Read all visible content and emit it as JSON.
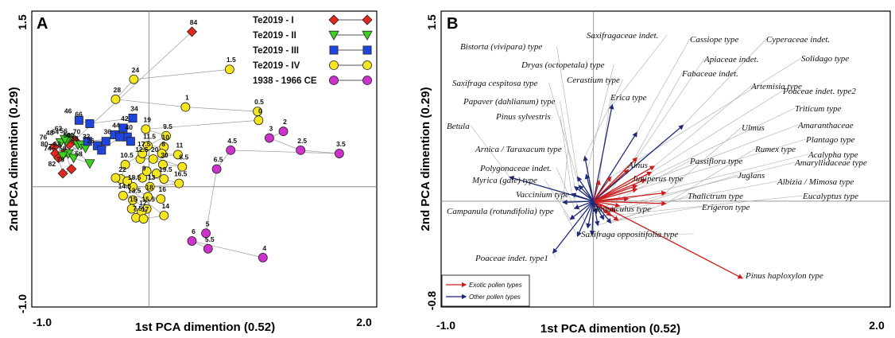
{
  "chart_data": [
    {
      "type": "scatter",
      "panel_label": "A",
      "xlabel": "1st PCA dimention (0.52)",
      "ylabel": "2nd PCA dimention (0.29)",
      "xlim": [
        -1.0,
        2.0
      ],
      "ylim": [
        -1.0,
        1.5
      ],
      "x_ticks": [
        "-1.0",
        "2.0"
      ],
      "y_ticks": [
        "-1.0",
        "1.5"
      ],
      "zero_lines": true,
      "legend_position": "top-right",
      "series": [
        {
          "name": "Te2019 - I",
          "marker": "diamond",
          "color": "#e0281e",
          "points": [
            {
              "label": "84",
              "x": 0.4,
              "y": 1.4
            },
            {
              "label": "56",
              "x": -0.69,
              "y": 0.42
            },
            {
              "label": "76",
              "x": -0.88,
              "y": 0.36
            },
            {
              "label": "80",
              "x": -0.87,
              "y": 0.3
            },
            {
              "label": "74",
              "x": -0.84,
              "y": 0.26
            },
            {
              "label": "82",
              "x": -0.8,
              "y": 0.12
            },
            {
              "label": "78",
              "x": -0.72,
              "y": 0.16
            },
            {
              "label": "",
              "x": -0.78,
              "y": 0.31
            },
            {
              "label": "",
              "x": -0.74,
              "y": 0.38
            }
          ]
        },
        {
          "name": "Te2019 - II",
          "marker": "triangle-down",
          "color": "#3cd21e",
          "points": [
            {
              "label": "62",
              "x": -0.74,
              "y": 0.44
            },
            {
              "label": "48",
              "x": -0.82,
              "y": 0.4
            },
            {
              "label": "64",
              "x": -0.77,
              "y": 0.41
            },
            {
              "label": "54",
              "x": -0.66,
              "y": 0.38
            },
            {
              "label": "68",
              "x": -0.75,
              "y": 0.3
            },
            {
              "label": "60",
              "x": -0.63,
              "y": 0.38
            },
            {
              "label": "38",
              "x": -0.59,
              "y": 0.35
            },
            {
              "label": "72",
              "x": -0.8,
              "y": 0.28
            },
            {
              "label": "50",
              "x": -0.7,
              "y": 0.26
            },
            {
              "label": "58",
              "x": -0.55,
              "y": 0.21
            },
            {
              "label": "",
              "x": -0.78,
              "y": 0.43
            }
          ]
        },
        {
          "name": "Te2019 - III",
          "marker": "square",
          "color": "#1e46dc",
          "points": [
            {
              "label": "46",
              "x": -0.65,
              "y": 0.6
            },
            {
              "label": "66",
              "x": -0.55,
              "y": 0.57
            },
            {
              "label": "34",
              "x": -0.15,
              "y": 0.62
            },
            {
              "label": "42",
              "x": -0.24,
              "y": 0.53
            },
            {
              "label": "44",
              "x": -0.32,
              "y": 0.47
            },
            {
              "label": "40",
              "x": -0.2,
              "y": 0.45
            },
            {
              "label": "70",
              "x": -0.57,
              "y": 0.41
            },
            {
              "label": "36",
              "x": -0.4,
              "y": 0.41
            },
            {
              "label": "32",
              "x": -0.48,
              "y": 0.37
            },
            {
              "label": "26",
              "x": -0.44,
              "y": 0.33
            },
            {
              "label": "",
              "x": -0.27,
              "y": 0.45
            },
            {
              "label": "",
              "x": -0.17,
              "y": 0.41
            }
          ]
        },
        {
          "name": "Te2019 - IV",
          "marker": "circle",
          "color": "#f5e61e",
          "points": [
            {
              "label": "1.5",
              "x": 0.75,
              "y": 1.06
            },
            {
              "label": "24",
              "x": -0.14,
              "y": 0.97
            },
            {
              "label": "28",
              "x": -0.31,
              "y": 0.79
            },
            {
              "label": "1",
              "x": 0.34,
              "y": 0.72
            },
            {
              "label": "0.5",
              "x": 1.01,
              "y": 0.68
            },
            {
              "label": "0",
              "x": 1.02,
              "y": 0.6
            },
            {
              "label": "19",
              "x": -0.03,
              "y": 0.52
            },
            {
              "label": "9.5",
              "x": 0.16,
              "y": 0.46
            },
            {
              "label": "11.5",
              "x": -0.01,
              "y": 0.37
            },
            {
              "label": "10",
              "x": 0.14,
              "y": 0.36
            },
            {
              "label": "8",
              "x": 0.12,
              "y": 0.3
            },
            {
              "label": "11",
              "x": 0.27,
              "y": 0.29
            },
            {
              "label": "12.5",
              "x": -0.08,
              "y": 0.25
            },
            {
              "label": "20",
              "x": 0.04,
              "y": 0.25
            },
            {
              "label": "30",
              "x": 0.13,
              "y": 0.2
            },
            {
              "label": "8.5",
              "x": 0.31,
              "y": 0.18
            },
            {
              "label": "17.5",
              "x": -0.06,
              "y": 0.3
            },
            {
              "label": "10.5",
              "x": -0.22,
              "y": 0.2
            },
            {
              "label": "22",
              "x": -0.26,
              "y": 0.07
            },
            {
              "label": "9",
              "x": -0.06,
              "y": 0.08
            },
            {
              "label": "19.5",
              "x": 0.14,
              "y": 0.07
            },
            {
              "label": "16.5",
              "x": 0.28,
              "y": 0.03
            },
            {
              "label": "13",
              "x": 0.01,
              "y": 0.0
            },
            {
              "label": "18.5",
              "x": -0.15,
              "y": 0.0
            },
            {
              "label": "18",
              "x": -0.01,
              "y": -0.09
            },
            {
              "label": "16",
              "x": 0.11,
              "y": -0.11
            },
            {
              "label": "14.5",
              "x": -0.24,
              "y": -0.08
            },
            {
              "label": "13.5",
              "x": -0.15,
              "y": -0.12
            },
            {
              "label": "15.5",
              "x": -0.02,
              "y": -0.2
            },
            {
              "label": "15",
              "x": -0.16,
              "y": -0.2
            },
            {
              "label": "12",
              "x": -0.07,
              "y": -0.23
            },
            {
              "label": "7.5",
              "x": -0.12,
              "y": -0.28
            },
            {
              "label": "17",
              "x": -0.05,
              "y": -0.29
            },
            {
              "label": "14",
              "x": 0.14,
              "y": -0.26
            },
            {
              "label": "",
              "x": -0.31,
              "y": 0.08
            },
            {
              "label": "",
              "x": -0.2,
              "y": 0.05
            },
            {
              "label": "",
              "x": -0.02,
              "y": 0.14
            },
            {
              "label": "",
              "x": 0.07,
              "y": 0.12
            }
          ]
        },
        {
          "name": "1938 - 1966 CE",
          "marker": "circle",
          "color": "#cd32cd",
          "points": [
            {
              "label": "2",
              "x": 1.25,
              "y": 0.5
            },
            {
              "label": "3",
              "x": 1.12,
              "y": 0.44
            },
            {
              "label": "2.5",
              "x": 1.41,
              "y": 0.33
            },
            {
              "label": "3.5",
              "x": 1.77,
              "y": 0.3
            },
            {
              "label": "4.5",
              "x": 0.76,
              "y": 0.33
            },
            {
              "label": "6.5",
              "x": 0.63,
              "y": 0.16
            },
            {
              "label": "5",
              "x": 0.53,
              "y": -0.42
            },
            {
              "label": "5.5",
              "x": 0.55,
              "y": -0.56
            },
            {
              "label": "6",
              "x": 0.4,
              "y": -0.49
            },
            {
              "label": "4",
              "x": 1.06,
              "y": -0.64
            }
          ]
        }
      ]
    },
    {
      "type": "biplot",
      "panel_label": "B",
      "xlabel": "1st PCA dimention (0.52)",
      "ylabel": "2nd PCA dimention (0.29)",
      "xlim": [
        -1.0,
        2.0
      ],
      "ylim": [
        -0.8,
        1.5
      ],
      "x_ticks": [
        "-1.0",
        "2.0"
      ],
      "y_ticks": [
        "-0.8",
        "1.5"
      ],
      "legend_position": "bottom-left",
      "legend": [
        {
          "name": "Exotic pollen types",
          "color": "#d21e1e"
        },
        {
          "name": "Other pollen types",
          "color": "#1e1e82"
        }
      ],
      "vectors": [
        {
          "name": "Pinus haploxylon type",
          "group": "exotic",
          "x": 1.03,
          "y": -0.64
        },
        {
          "name": "Rumex type",
          "group": "exotic",
          "x": 0.5,
          "y": -0.02
        },
        {
          "name": "Ulmus",
          "group": "exotic",
          "x": 0.5,
          "y": 0.07
        },
        {
          "name": "Artemisia type",
          "group": "exotic",
          "x": 0.42,
          "y": 0.29
        },
        {
          "name": "Poaceae indet. type2",
          "group": "exotic",
          "x": 0.4,
          "y": 0.24
        },
        {
          "name": "Triticum type",
          "group": "exotic",
          "x": 0.36,
          "y": 0.18
        },
        {
          "name": "Amaranthaceae",
          "group": "exotic",
          "x": 0.3,
          "y": 0.13
        },
        {
          "name": "Plantago type",
          "group": "exotic",
          "x": 0.3,
          "y": 0.1
        },
        {
          "name": "Acalypha type",
          "group": "exotic",
          "x": 0.24,
          "y": 0.02
        },
        {
          "name": "Amaryllidaceae type",
          "group": "exotic",
          "x": 0.18,
          "y": -0.04
        },
        {
          "name": "Albizia / Mimosa type",
          "group": "exotic",
          "x": 0.15,
          "y": -0.08
        },
        {
          "name": "Eucalyptus type",
          "group": "exotic",
          "x": 0.12,
          "y": -0.12
        },
        {
          "name": "Juglans",
          "group": "exotic",
          "x": 0.1,
          "y": -0.1
        },
        {
          "name": "Passiflora type",
          "group": "exotic",
          "x": 0.06,
          "y": -0.06
        },
        {
          "name": "Thalictrum type",
          "group": "other",
          "x": 0.12,
          "y": -0.18
        },
        {
          "name": "Erigeron type",
          "group": "exotic",
          "x": 0.17,
          "y": -0.16
        },
        {
          "name": "Fabaceae indet.",
          "group": "exotic",
          "x": 0.24,
          "y": 0.26
        },
        {
          "name": "Apiaceae indet.",
          "group": "exotic",
          "x": 0.3,
          "y": 0.36
        },
        {
          "name": "Cyperaceae indet.",
          "group": "other",
          "x": 0.62,
          "y": 0.63
        },
        {
          "name": "Cassiope type",
          "group": "other",
          "x": 0.3,
          "y": 0.57
        },
        {
          "name": "Solidago type",
          "group": "exotic",
          "x": 0.12,
          "y": 0.2
        },
        {
          "name": "Saxifragaceae indet.",
          "group": "other",
          "x": 0.13,
          "y": 0.8
        },
        {
          "name": "Erica type",
          "group": "exotic",
          "x": 0.04,
          "y": 0.17
        },
        {
          "name": "Cerastium type",
          "group": "other",
          "x": -0.06,
          "y": 0.37
        },
        {
          "name": "Dryas (octopetala) type",
          "group": "other",
          "x": -0.05,
          "y": 0.22
        },
        {
          "name": "Bistorta (vivipara) type",
          "group": "other",
          "x": -0.11,
          "y": 0.2
        },
        {
          "name": "Saxifraga cespitosa type",
          "group": "other",
          "x": -0.1,
          "y": 0.13
        },
        {
          "name": "Papaver (dahlianum) type",
          "group": "other",
          "x": -0.13,
          "y": 0.12
        },
        {
          "name": "Pinus sylvestris",
          "group": "other",
          "x": -0.15,
          "y": 0.06
        },
        {
          "name": "Betula",
          "group": "other",
          "x": -0.58,
          "y": 0.2
        },
        {
          "name": "Arnica / Taraxacum type",
          "group": "other",
          "x": -0.21,
          "y": -0.01
        },
        {
          "name": "Polygonaceae indet.",
          "group": "other",
          "x": -0.13,
          "y": -0.06
        },
        {
          "name": "Myrica (gale) type",
          "group": "other",
          "x": -0.16,
          "y": -0.15
        },
        {
          "name": "Vaccinium type",
          "group": "other",
          "x": -0.04,
          "y": -0.22
        },
        {
          "name": "Alnus",
          "group": "other",
          "x": 0.02,
          "y": -0.1
        },
        {
          "name": "Juniperus type",
          "group": "other",
          "x": 0.07,
          "y": -0.15
        },
        {
          "name": "Ranunculus type",
          "group": "other",
          "x": 0.03,
          "y": -0.2
        },
        {
          "name": "Campanula (rotundifolia) type",
          "group": "other",
          "x": -0.11,
          "y": -0.29
        },
        {
          "name": "Saxifraga oppositifolia type",
          "group": "other",
          "x": -0.01,
          "y": -0.28
        },
        {
          "name": "Poaceae indet. type1",
          "group": "other",
          "x": -0.28,
          "y": -0.43
        }
      ]
    }
  ]
}
